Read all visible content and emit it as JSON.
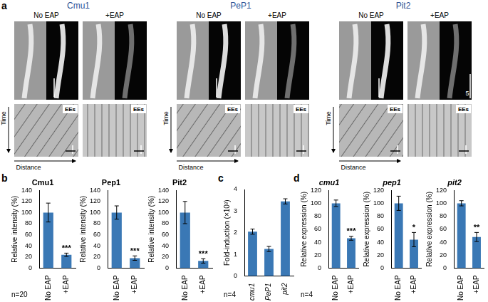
{
  "figure": {
    "panel_labels": [
      "a",
      "b",
      "c",
      "d"
    ],
    "panel_a": {
      "columns": [
        {
          "title": "Cmu1",
          "conditions": [
            "No EAP",
            "+EAP"
          ]
        },
        {
          "title": "PeP1",
          "conditions": [
            "No EAP",
            "+EAP"
          ]
        },
        {
          "title": "Pit2",
          "conditions": [
            "No EAP",
            "+EAP"
          ]
        }
      ],
      "kymograph_label": "EEs",
      "time_label": "Time",
      "distance_label": "Distance",
      "scale_bar_label": "5"
    }
  },
  "chart_data": [
    {
      "type": "bar",
      "title": "Cmu1",
      "categories": [
        "No EAP",
        "+EAP"
      ],
      "values": [
        100,
        24
      ],
      "errors": [
        17,
        3
      ],
      "significance": [
        null,
        "***"
      ],
      "y_label": "Relative intensity (%)",
      "ylim": [
        0,
        140
      ],
      "yticks": [
        0,
        20,
        40,
        60,
        80,
        100,
        120,
        140
      ],
      "color": "#3a78b5",
      "annotations": [
        "n=20"
      ]
    },
    {
      "type": "bar",
      "title": "Pep1",
      "categories": [
        "No EAP",
        "+EAP"
      ],
      "values": [
        100,
        18
      ],
      "errors": [
        12,
        4
      ],
      "significance": [
        null,
        "***"
      ],
      "y_label": "Relative intensity (%)",
      "ylim": [
        0,
        140
      ],
      "yticks": [
        0,
        20,
        40,
        60,
        80,
        100,
        120,
        140
      ],
      "color": "#3a78b5"
    },
    {
      "type": "bar",
      "title": "Pit2",
      "categories": [
        "No EAP",
        "+EAP"
      ],
      "values": [
        100,
        13
      ],
      "errors": [
        20,
        4
      ],
      "significance": [
        null,
        "***"
      ],
      "y_label": "Relative intensity (%)",
      "ylim": [
        0,
        140
      ],
      "yticks": [
        0,
        20,
        40,
        60,
        80,
        100,
        120,
        140
      ],
      "color": "#3a78b5"
    },
    {
      "type": "bar",
      "categories": [
        "cmu1",
        "PeP1",
        "pit2"
      ],
      "values": [
        2.05,
        1.25,
        3.45
      ],
      "errors": [
        0.12,
        0.12,
        0.12
      ],
      "y_label": "Fold-induction (×10³)",
      "ylim": [
        0,
        4
      ],
      "yticks": [
        0,
        1,
        2,
        3,
        4
      ],
      "color": "#3a78b5",
      "annotations": [
        "n=4"
      ]
    },
    {
      "type": "bar",
      "title": "cmu1",
      "categories": [
        "No EAP",
        "+EAP"
      ],
      "values": [
        100,
        46
      ],
      "errors": [
        5,
        3
      ],
      "significance": [
        null,
        "***"
      ],
      "y_label": "Relative expression (%)",
      "ylim": [
        0,
        120
      ],
      "yticks": [
        0,
        20,
        40,
        60,
        80,
        100,
        120
      ],
      "color": "#3a78b5",
      "annotations": [
        "n=4"
      ]
    },
    {
      "type": "bar",
      "title": "pep1",
      "categories": [
        "No EAP",
        "+EAP"
      ],
      "values": [
        100,
        44
      ],
      "errors": [
        11,
        11
      ],
      "significance": [
        null,
        "*"
      ],
      "y_label": "Relative expression (%)",
      "ylim": [
        0,
        120
      ],
      "yticks": [
        0,
        20,
        40,
        60,
        80,
        100,
        120
      ],
      "color": "#3a78b5"
    },
    {
      "type": "bar",
      "title": "pit2",
      "categories": [
        "No EAP",
        "+EAP"
      ],
      "values": [
        100,
        48
      ],
      "errors": [
        4,
        7
      ],
      "significance": [
        null,
        "**"
      ],
      "y_label": "Relative expression (%)",
      "ylim": [
        0,
        120
      ],
      "yticks": [
        0,
        20,
        40,
        60,
        80,
        100,
        120
      ],
      "color": "#3a78b5"
    }
  ]
}
